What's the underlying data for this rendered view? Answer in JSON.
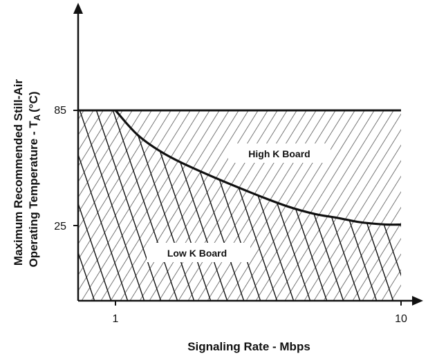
{
  "chart_data": {
    "type": "area",
    "xlabel": "Signaling Rate - Mbps",
    "ylabel_line1": "Maximum Recommended Still-Air",
    "ylabel_line2_main": "Operating Temperature  -  T",
    "ylabel_line2_sub": "A",
    "ylabel_line2_unit": "(°C)",
    "x_scale": "log",
    "x_ticks": [
      1,
      10
    ],
    "y_ticks": [
      25,
      85
    ],
    "x_tick_labels": [
      "1",
      "10"
    ],
    "y_tick_labels": [
      "25",
      "85"
    ],
    "grid": false,
    "series": [
      {
        "name": "High K Board",
        "x": [
          1,
          10
        ],
        "y": [
          85,
          85
        ]
      },
      {
        "name": "Low K Board",
        "x": [
          1,
          1.2,
          1.5,
          2,
          3,
          4,
          5,
          6,
          7,
          8,
          9,
          10
        ],
        "y": [
          85,
          72,
          62,
          53,
          42,
          35,
          31,
          29,
          27,
          26,
          25.5,
          25.5
        ]
      }
    ],
    "annotations": [
      "High K Board",
      "Low K Board"
    ]
  }
}
